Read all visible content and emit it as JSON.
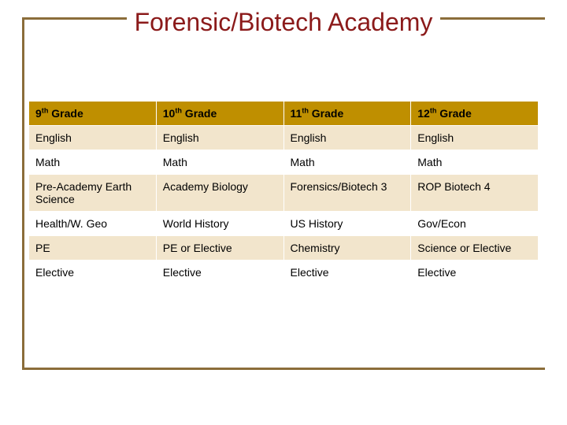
{
  "title": "Forensic/Biotech Academy",
  "colors": {
    "frame_border": "#8b6d3a",
    "title_color": "#8b1a1a",
    "header_bg": "#bf8f00",
    "odd_row_bg": "#f2e5cc",
    "even_row_bg": "#ffffff",
    "text_color": "#000000",
    "background": "#ffffff"
  },
  "typography": {
    "title_fontsize": 32,
    "cell_fontsize": 14,
    "title_fontfamily": "Gill Sans",
    "body_fontfamily": "Arial"
  },
  "table": {
    "type": "table",
    "columns": [
      {
        "num": "9",
        "suffix": "th",
        "label": " Grade"
      },
      {
        "num": "10",
        "suffix": "th",
        "label": " Grade"
      },
      {
        "num": "11",
        "suffix": "th",
        "label": " Grade"
      },
      {
        "num": "12",
        "suffix": "th",
        "label": " Grade"
      }
    ],
    "rows": [
      [
        "English",
        "English",
        "English",
        "English"
      ],
      [
        "Math",
        "Math",
        "Math",
        "Math"
      ],
      [
        "Pre-Academy Earth Science",
        "Academy Biology",
        "Forensics/Biotech 3",
        "ROP Biotech 4"
      ],
      [
        "Health/W. Geo",
        "World History",
        "US History",
        "Gov/Econ"
      ],
      [
        "PE",
        "PE or Elective",
        "Chemistry",
        "Science or Elective"
      ],
      [
        "Elective",
        "Elective",
        "Elective",
        "Elective"
      ]
    ]
  }
}
